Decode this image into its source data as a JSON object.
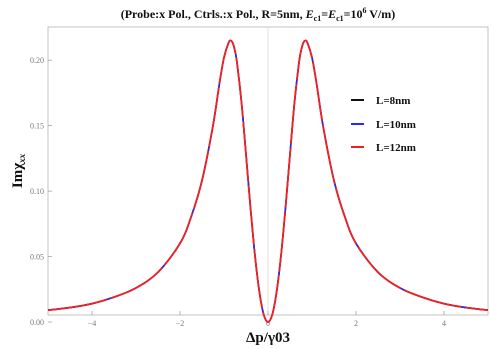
{
  "chart_data": {
    "type": "line",
    "title_pre": "(Probe:x Pol., Ctrls.:x Pol., R=5nm, ",
    "title_e1": "E",
    "title_e1_sub": "c1",
    "title_eq": "=",
    "title_e2": "E",
    "title_e2_sub": "c1",
    "title_eq2": "=10",
    "title_exp": "6",
    "title_post": " V/m)",
    "xlabel": "Δp/γ03",
    "ylabel_main": "Imχ",
    "ylabel_sub": "xx",
    "xlim": [
      -5,
      5
    ],
    "ylim": [
      0,
      0.22
    ],
    "x_ticks": [
      -4,
      -2,
      0,
      2,
      4
    ],
    "x_tick_labels": [
      "−4",
      "−2",
      "0",
      "2",
      "4"
    ],
    "y_ticks": [
      0.0,
      0.05,
      0.1,
      0.15,
      0.2
    ],
    "y_tick_labels": [
      "0.00",
      "0.05",
      "0.10",
      "0.15",
      "0.20"
    ],
    "legend_position": "right",
    "x": [
      -5.0,
      -4.5,
      -4.0,
      -3.5,
      -3.0,
      -2.5,
      -2.0,
      -1.75,
      -1.5,
      -1.25,
      -1.1,
      -1.0,
      -0.9,
      -0.85,
      -0.8,
      -0.75,
      -0.7,
      -0.6,
      -0.5,
      -0.4,
      -0.3,
      -0.2,
      -0.1,
      0.0,
      0.1,
      0.2,
      0.3,
      0.4,
      0.5,
      0.6,
      0.7,
      0.75,
      0.8,
      0.85,
      0.9,
      1.0,
      1.1,
      1.25,
      1.5,
      1.75,
      2.0,
      2.5,
      3.0,
      3.5,
      4.0,
      4.5,
      5.0
    ],
    "series": [
      {
        "name": "L=8nm",
        "color": "#111111",
        "dash": "none",
        "values": [
          0.009,
          0.011,
          0.014,
          0.019,
          0.026,
          0.038,
          0.06,
          0.08,
          0.108,
          0.15,
          0.183,
          0.202,
          0.213,
          0.215,
          0.213,
          0.207,
          0.197,
          0.167,
          0.128,
          0.088,
          0.052,
          0.024,
          0.006,
          0.0,
          0.006,
          0.024,
          0.052,
          0.088,
          0.128,
          0.167,
          0.197,
          0.207,
          0.213,
          0.215,
          0.213,
          0.202,
          0.183,
          0.15,
          0.108,
          0.08,
          0.06,
          0.038,
          0.026,
          0.019,
          0.014,
          0.011,
          0.009
        ]
      },
      {
        "name": "L=10nm",
        "color": "#1f2bff",
        "dash": "none",
        "values": [
          0.009,
          0.011,
          0.014,
          0.019,
          0.026,
          0.038,
          0.06,
          0.08,
          0.108,
          0.15,
          0.183,
          0.202,
          0.213,
          0.215,
          0.213,
          0.207,
          0.197,
          0.167,
          0.128,
          0.088,
          0.052,
          0.024,
          0.006,
          0.0,
          0.006,
          0.024,
          0.052,
          0.088,
          0.128,
          0.167,
          0.197,
          0.207,
          0.213,
          0.215,
          0.213,
          0.202,
          0.183,
          0.15,
          0.108,
          0.08,
          0.06,
          0.038,
          0.026,
          0.019,
          0.014,
          0.011,
          0.009
        ]
      },
      {
        "name": "L=12nm",
        "color": "#ee2222",
        "dash": "dashed",
        "values": [
          0.009,
          0.011,
          0.014,
          0.019,
          0.026,
          0.038,
          0.06,
          0.08,
          0.108,
          0.15,
          0.183,
          0.202,
          0.213,
          0.215,
          0.213,
          0.207,
          0.197,
          0.167,
          0.128,
          0.088,
          0.052,
          0.024,
          0.006,
          0.0,
          0.006,
          0.024,
          0.052,
          0.088,
          0.128,
          0.167,
          0.197,
          0.207,
          0.213,
          0.215,
          0.213,
          0.202,
          0.183,
          0.15,
          0.108,
          0.08,
          0.06,
          0.038,
          0.026,
          0.019,
          0.014,
          0.011,
          0.009
        ]
      }
    ]
  }
}
